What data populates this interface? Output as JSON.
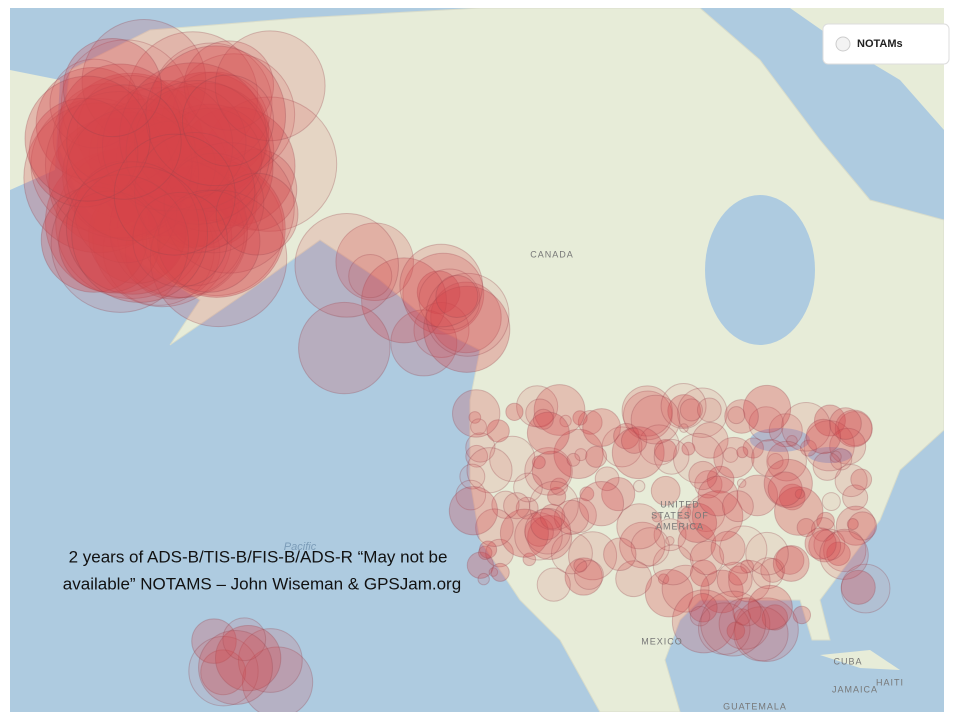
{
  "caption": [
    "2 years of ADS-B/TIS-B/FIS-B/ADS-R  “May not be",
    "available” NOTAMS – John Wiseman & GPSJam.org"
  ],
  "legend": {
    "label": "NOTAMs"
  },
  "map_labels": {
    "canada": "CANADA",
    "usa": [
      "UNITED",
      "STATES OF",
      "AMERICA"
    ],
    "mexico": "MEXICO",
    "cuba": "CUBA",
    "haiti": "HAITI",
    "jamaica": "JAMAICA",
    "guatemala": "GUATEMALA",
    "pacific": "Pacific"
  }
}
